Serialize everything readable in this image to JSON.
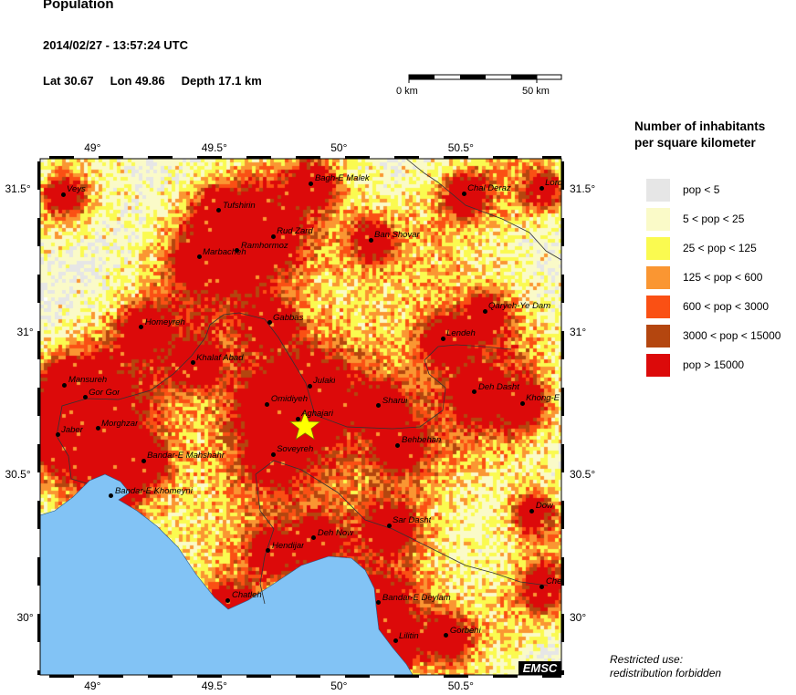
{
  "header": {
    "title": "Population",
    "datetime": "2014/02/27 - 13:57:24 UTC",
    "lat": "Lat 30.67",
    "lon": "Lon 49.86",
    "depth": "Depth 17.1 km"
  },
  "scale_bar": {
    "start_label": "0 km",
    "end_label": "50 km"
  },
  "map": {
    "lon_range": [
      48.79,
      50.91
    ],
    "lat_range": [
      29.8,
      31.61
    ],
    "lon_ticks": [
      {
        "value": 49,
        "label": "49°"
      },
      {
        "value": 49.5,
        "label": "49.5°"
      },
      {
        "value": 50,
        "label": "50°"
      },
      {
        "value": 50.5,
        "label": "50.5°"
      }
    ],
    "lat_ticks": [
      {
        "value": 31.5,
        "label": "31.5°"
      },
      {
        "value": 31,
        "label": "31°"
      },
      {
        "value": 30.5,
        "label": "30.5°"
      },
      {
        "value": 30,
        "label": "30°"
      }
    ],
    "epicenter": {
      "lat": 30.67,
      "lon": 49.86,
      "color": "#ffff00"
    },
    "sea_color": "#82c3f5",
    "cities": [
      {
        "name": "Veys",
        "lon": 48.878,
        "lat": 31.484
      },
      {
        "name": "Tufshirin",
        "lon": 49.511,
        "lat": 31.427
      },
      {
        "name": "Rud Zard",
        "lon": 49.73,
        "lat": 31.337
      },
      {
        "name": "Marbacheh",
        "lon": 49.43,
        "lat": 31.264
      },
      {
        "name": "Ramhormoz",
        "lon": 49.585,
        "lat": 31.286
      },
      {
        "name": "Bagh-E Malek",
        "lon": 49.885,
        "lat": 31.522
      },
      {
        "name": "Ban Shovar",
        "lon": 50.126,
        "lat": 31.324
      },
      {
        "name": "Chal Deraz",
        "lon": 50.504,
        "lat": 31.487
      },
      {
        "name": "Lordegan",
        "lon": 50.819,
        "lat": 31.506
      },
      {
        "name": "Qaryeh-Ye Dam",
        "lon": 50.589,
        "lat": 31.075
      },
      {
        "name": "Gabbas",
        "lon": 49.715,
        "lat": 31.034
      },
      {
        "name": "Homeyreh",
        "lon": 49.196,
        "lat": 31.018
      },
      {
        "name": "Lendeh",
        "lon": 50.419,
        "lat": 30.979
      },
      {
        "name": "Khalaf Abad",
        "lon": 49.404,
        "lat": 30.893
      },
      {
        "name": "Mansureh",
        "lon": 48.885,
        "lat": 30.816
      },
      {
        "name": "Gor Gor",
        "lon": 48.967,
        "lat": 30.772
      },
      {
        "name": "Julaki",
        "lon": 49.878,
        "lat": 30.813
      },
      {
        "name": "Deh Dasht",
        "lon": 50.548,
        "lat": 30.791
      },
      {
        "name": "Khong-E",
        "lon": 50.741,
        "lat": 30.752
      },
      {
        "name": "Omidiyeh",
        "lon": 49.707,
        "lat": 30.749
      },
      {
        "name": "Sharui",
        "lon": 50.159,
        "lat": 30.743
      },
      {
        "name": "Aghajari",
        "lon": 49.83,
        "lat": 30.698
      },
      {
        "name": "Morghzar",
        "lon": 49.019,
        "lat": 30.663
      },
      {
        "name": "Jaber",
        "lon": 48.856,
        "lat": 30.641
      },
      {
        "name": "Behbehan",
        "lon": 50.237,
        "lat": 30.605
      },
      {
        "name": "Soveyreh",
        "lon": 49.73,
        "lat": 30.573
      },
      {
        "name": "Bandar-E Mahshahr",
        "lon": 49.204,
        "lat": 30.551
      },
      {
        "name": "Bandar-E Khomeyni",
        "lon": 49.074,
        "lat": 30.427
      },
      {
        "name": "Dow",
        "lon": 50.781,
        "lat": 30.375
      },
      {
        "name": "Sar Dasht",
        "lon": 50.2,
        "lat": 30.324
      },
      {
        "name": "Deh Now",
        "lon": 49.896,
        "lat": 30.28
      },
      {
        "name": "Hendijar",
        "lon": 49.711,
        "lat": 30.235
      },
      {
        "name": "Chehel",
        "lon": 50.822,
        "lat": 30.11
      },
      {
        "name": "Chatleh",
        "lon": 49.548,
        "lat": 30.062
      },
      {
        "name": "Bandar-E Deylam",
        "lon": 50.159,
        "lat": 30.053
      },
      {
        "name": "Gorbehi",
        "lon": 50.433,
        "lat": 29.938
      },
      {
        "name": "Lilitin",
        "lon": 50.226,
        "lat": 29.919
      }
    ]
  },
  "legend": {
    "title_line1": "Number of inhabitants",
    "title_line2": "per square kilometer",
    "items": [
      {
        "label": "pop < 5",
        "color": "#e6e6e6"
      },
      {
        "label": "5 < pop < 25",
        "color": "#fafac8"
      },
      {
        "label": "25 < pop < 125",
        "color": "#fafa50"
      },
      {
        "label": "125 < pop < 600",
        "color": "#fa9632"
      },
      {
        "label": "600 < pop < 3000",
        "color": "#fa5014"
      },
      {
        "label": "3000 < pop < 15000",
        "color": "#b4460f"
      },
      {
        "label": "pop > 15000",
        "color": "#dc0a0a"
      }
    ]
  },
  "footer": {
    "note_line1": "Restricted use:",
    "note_line2": "redistribution forbidden",
    "logo": "EMSC"
  }
}
